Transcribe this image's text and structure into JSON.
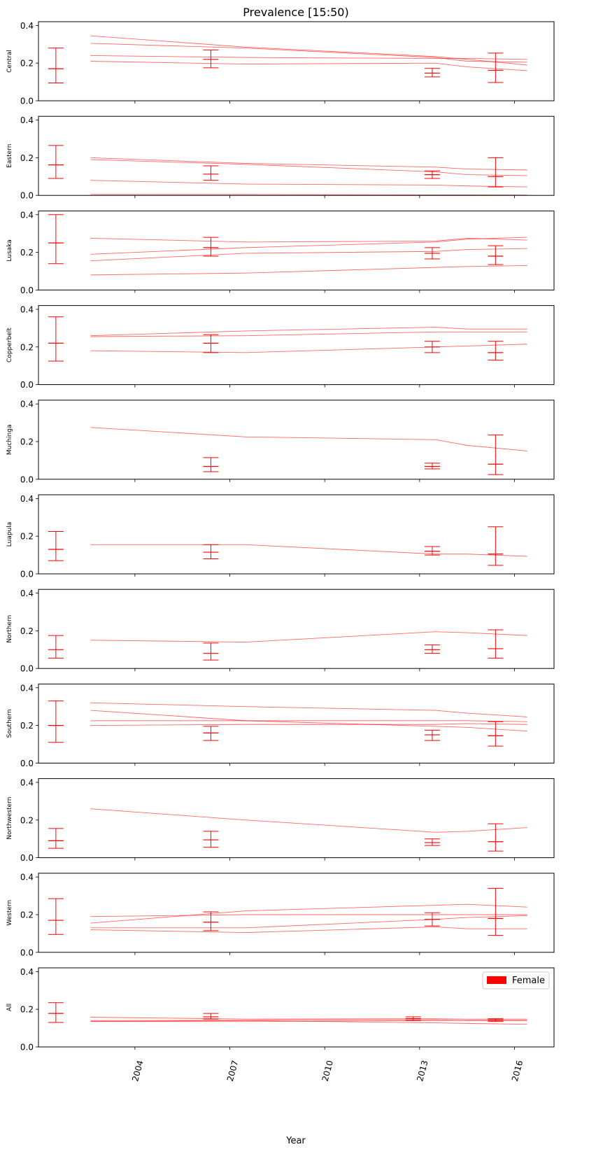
{
  "chart_data": {
    "type": "line",
    "title": "Prevalence [15:50)",
    "xlabel": "Year",
    "xlim": [
      2000.95,
      2017.25
    ],
    "ylim": [
      0,
      0.42
    ],
    "xticks": [
      2004,
      2007,
      2010,
      2013,
      2016
    ],
    "yticks": [
      0.0,
      0.2,
      0.4
    ],
    "ytick_labels": [
      "0.0",
      "0.2",
      "0.4"
    ],
    "xtick_labels": [
      "2004",
      "2007",
      "2010",
      "2013",
      "2016"
    ],
    "legend": {
      "entries": [
        "Female"
      ],
      "placement": "top-right",
      "panel": "All"
    },
    "series_color": "#ff0000",
    "line_x": [
      2002.6,
      2007.5,
      2013.5,
      2014.5,
      2016.4
    ],
    "panels": [
      {
        "label": "Central",
        "lines": [
          [
            0.345,
            0.285,
            0.235,
            0.22,
            0.19
          ],
          [
            0.305,
            0.28,
            0.23,
            0.21,
            0.205
          ],
          [
            0.24,
            0.23,
            0.225,
            0.225,
            0.22
          ],
          [
            0.21,
            0.195,
            0.2,
            0.18,
            0.16
          ]
        ],
        "errorbars": [
          {
            "x": 2001.5,
            "y": 0.17,
            "lo": 0.095,
            "hi": 0.28
          },
          {
            "x": 2006.4,
            "y": 0.22,
            "lo": 0.175,
            "hi": 0.27
          },
          {
            "x": 2013.4,
            "y": 0.147,
            "lo": 0.127,
            "hi": 0.172
          },
          {
            "x": 2015.4,
            "y": 0.162,
            "lo": 0.097,
            "hi": 0.253
          }
        ]
      },
      {
        "label": "Eastern",
        "lines": [
          [
            0.2,
            0.17,
            0.15,
            0.14,
            0.135
          ],
          [
            0.19,
            0.165,
            0.125,
            0.11,
            0.105
          ],
          [
            0.08,
            0.06,
            0.055,
            0.05,
            0.045
          ],
          [
            0.005,
            0.005,
            0.003,
            0.003,
            0.002
          ]
        ],
        "errorbars": [
          {
            "x": 2001.5,
            "y": 0.162,
            "lo": 0.09,
            "hi": 0.265
          },
          {
            "x": 2006.4,
            "y": 0.113,
            "lo": 0.08,
            "hi": 0.157
          },
          {
            "x": 2013.4,
            "y": 0.11,
            "lo": 0.09,
            "hi": 0.13
          },
          {
            "x": 2015.4,
            "y": 0.1,
            "lo": 0.045,
            "hi": 0.2
          }
        ]
      },
      {
        "label": "Lusaka",
        "lines": [
          [
            0.275,
            0.255,
            0.26,
            0.275,
            0.265
          ],
          [
            0.19,
            0.225,
            0.255,
            0.27,
            0.28
          ],
          [
            0.155,
            0.195,
            0.205,
            0.215,
            0.22
          ],
          [
            0.08,
            0.09,
            0.12,
            0.125,
            0.13
          ]
        ],
        "errorbars": [
          {
            "x": 2001.5,
            "y": 0.25,
            "lo": 0.14,
            "hi": 0.4
          },
          {
            "x": 2006.4,
            "y": 0.225,
            "lo": 0.18,
            "hi": 0.28
          },
          {
            "x": 2013.4,
            "y": 0.195,
            "lo": 0.165,
            "hi": 0.225
          },
          {
            "x": 2015.4,
            "y": 0.18,
            "lo": 0.135,
            "hi": 0.235
          }
        ]
      },
      {
        "label": "Copperbelt",
        "lines": [
          [
            0.26,
            0.285,
            0.305,
            0.295,
            0.295
          ],
          [
            0.255,
            0.26,
            0.28,
            0.28,
            0.28
          ],
          [
            0.18,
            0.17,
            0.2,
            0.205,
            0.215
          ]
        ],
        "errorbars": [
          {
            "x": 2001.5,
            "y": 0.22,
            "lo": 0.125,
            "hi": 0.36
          },
          {
            "x": 2006.4,
            "y": 0.22,
            "lo": 0.17,
            "hi": 0.265
          },
          {
            "x": 2013.4,
            "y": 0.2,
            "lo": 0.17,
            "hi": 0.23
          },
          {
            "x": 2015.4,
            "y": 0.17,
            "lo": 0.13,
            "hi": 0.23
          }
        ]
      },
      {
        "label": "Muchinga",
        "lines": [
          [
            0.275,
            0.225,
            0.21,
            0.18,
            0.15
          ]
        ],
        "errorbars": [
          {
            "x": 2006.4,
            "y": 0.068,
            "lo": 0.04,
            "hi": 0.115
          },
          {
            "x": 2013.4,
            "y": 0.068,
            "lo": 0.055,
            "hi": 0.085
          },
          {
            "x": 2015.4,
            "y": 0.08,
            "lo": 0.025,
            "hi": 0.235
          }
        ]
      },
      {
        "label": "Luapula",
        "lines": [
          [
            0.155,
            0.155,
            0.105,
            0.105,
            0.093
          ]
        ],
        "errorbars": [
          {
            "x": 2001.5,
            "y": 0.13,
            "lo": 0.07,
            "hi": 0.225
          },
          {
            "x": 2006.4,
            "y": 0.115,
            "lo": 0.08,
            "hi": 0.155
          },
          {
            "x": 2013.4,
            "y": 0.12,
            "lo": 0.1,
            "hi": 0.145
          },
          {
            "x": 2015.4,
            "y": 0.105,
            "lo": 0.045,
            "hi": 0.25
          }
        ]
      },
      {
        "label": "Northern",
        "lines": [
          [
            0.15,
            0.14,
            0.195,
            0.19,
            0.175
          ]
        ],
        "errorbars": [
          {
            "x": 2001.5,
            "y": 0.1,
            "lo": 0.055,
            "hi": 0.175
          },
          {
            "x": 2006.4,
            "y": 0.08,
            "lo": 0.045,
            "hi": 0.135
          },
          {
            "x": 2013.4,
            "y": 0.1,
            "lo": 0.08,
            "hi": 0.125
          },
          {
            "x": 2015.4,
            "y": 0.105,
            "lo": 0.055,
            "hi": 0.205
          }
        ]
      },
      {
        "label": "Southern",
        "lines": [
          [
            0.32,
            0.3,
            0.28,
            0.265,
            0.245
          ],
          [
            0.28,
            0.225,
            0.195,
            0.19,
            0.17
          ],
          [
            0.225,
            0.225,
            0.225,
            0.225,
            0.22
          ],
          [
            0.2,
            0.205,
            0.205,
            0.21,
            0.205
          ]
        ],
        "errorbars": [
          {
            "x": 2001.5,
            "y": 0.2,
            "lo": 0.11,
            "hi": 0.33
          },
          {
            "x": 2006.4,
            "y": 0.16,
            "lo": 0.12,
            "hi": 0.195
          },
          {
            "x": 2013.4,
            "y": 0.15,
            "lo": 0.12,
            "hi": 0.175
          },
          {
            "x": 2015.4,
            "y": 0.145,
            "lo": 0.09,
            "hi": 0.22
          }
        ]
      },
      {
        "label": "Northwestern",
        "lines": [
          [
            0.26,
            0.2,
            0.135,
            0.14,
            0.16
          ]
        ],
        "errorbars": [
          {
            "x": 2001.5,
            "y": 0.09,
            "lo": 0.05,
            "hi": 0.155
          },
          {
            "x": 2006.4,
            "y": 0.095,
            "lo": 0.055,
            "hi": 0.14
          },
          {
            "x": 2013.4,
            "y": 0.08,
            "lo": 0.065,
            "hi": 0.1
          },
          {
            "x": 2015.4,
            "y": 0.085,
            "lo": 0.035,
            "hi": 0.18
          }
        ]
      },
      {
        "label": "Western",
        "lines": [
          [
            0.19,
            0.2,
            0.2,
            0.2,
            0.2
          ],
          [
            0.155,
            0.22,
            0.25,
            0.255,
            0.24
          ],
          [
            0.13,
            0.13,
            0.175,
            0.185,
            0.195
          ],
          [
            0.12,
            0.105,
            0.135,
            0.125,
            0.125
          ]
        ],
        "errorbars": [
          {
            "x": 2001.5,
            "y": 0.17,
            "lo": 0.095,
            "hi": 0.285
          },
          {
            "x": 2006.4,
            "y": 0.16,
            "lo": 0.115,
            "hi": 0.215
          },
          {
            "x": 2013.4,
            "y": 0.175,
            "lo": 0.14,
            "hi": 0.21
          },
          {
            "x": 2015.4,
            "y": 0.18,
            "lo": 0.09,
            "hi": 0.34
          }
        ]
      },
      {
        "label": "All",
        "lines": [
          [
            0.158,
            0.148,
            0.15,
            0.148,
            0.148
          ],
          [
            0.14,
            0.142,
            0.145,
            0.14,
            0.14
          ],
          [
            0.135,
            0.14,
            0.128,
            0.125,
            0.12
          ],
          [
            0.135,
            0.135,
            0.14,
            0.142,
            0.142
          ]
        ],
        "errorbars": [
          {
            "x": 2001.5,
            "y": 0.178,
            "lo": 0.13,
            "hi": 0.235
          },
          {
            "x": 2006.4,
            "y": 0.16,
            "lo": 0.148,
            "hi": 0.178
          },
          {
            "x": 2012.8,
            "y": 0.15,
            "lo": 0.14,
            "hi": 0.16
          },
          {
            "x": 2015.4,
            "y": 0.143,
            "lo": 0.135,
            "hi": 0.15
          }
        ]
      }
    ]
  }
}
